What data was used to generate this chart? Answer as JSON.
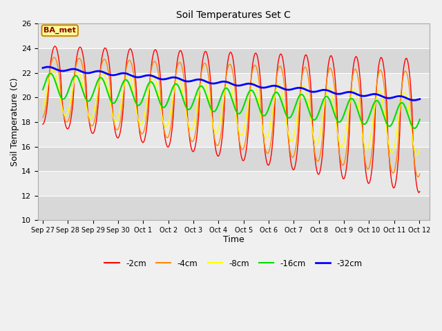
{
  "title": "Soil Temperatures Set C",
  "xlabel": "Time",
  "ylabel": "Soil Temperature (C)",
  "ylim": [
    10,
    26
  ],
  "annotation": "BA_met",
  "legend": [
    "-2cm",
    "-4cm",
    "-8cm",
    "-16cm",
    "-32cm"
  ],
  "line_colors": [
    "#ff0000",
    "#ff8800",
    "#ffff00",
    "#00dd00",
    "#0000ff"
  ],
  "line_widths": [
    1.0,
    1.0,
    1.0,
    1.5,
    2.0
  ],
  "bg_color": "#e8e8e8",
  "yticks": [
    10,
    12,
    14,
    16,
    18,
    20,
    22,
    24,
    26
  ],
  "xtick_labels": [
    "Sep 27",
    "Sep 28",
    "Sep 29",
    "Sep 30",
    "Oct 1",
    "Oct 2",
    "Oct 3",
    "Oct 4",
    "Oct 5",
    "Oct 6",
    "Oct 7",
    "Oct 8",
    "Oct 9",
    "Oct 10",
    "Oct 11",
    "Oct 12"
  ],
  "xtick_positions": [
    0,
    1,
    2,
    3,
    4,
    5,
    6,
    7,
    8,
    9,
    10,
    11,
    12,
    13,
    14,
    15
  ]
}
